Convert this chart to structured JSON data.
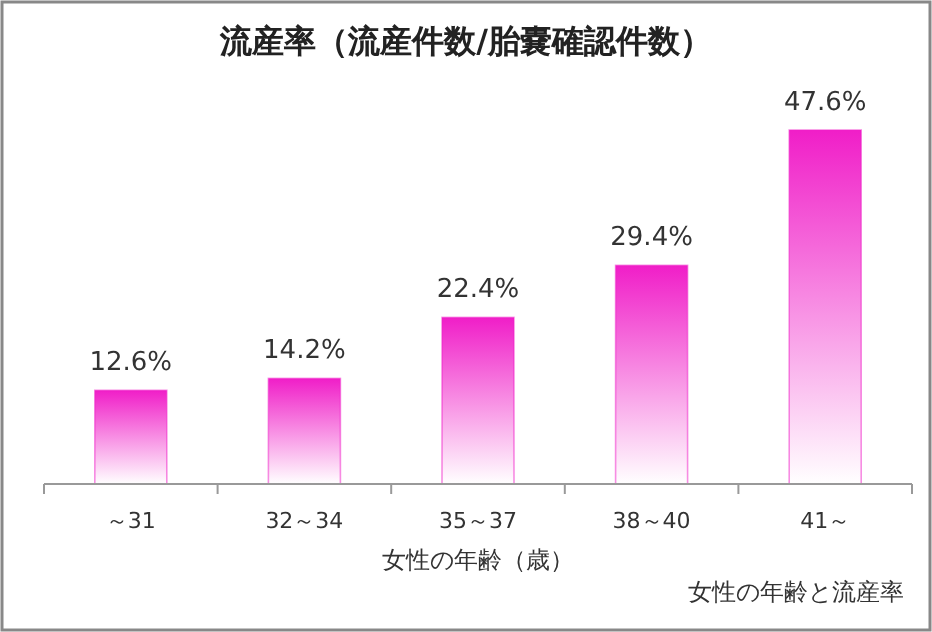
{
  "chart_data": {
    "type": "bar",
    "title": "流産率（流産件数/胎嚢確認件数）",
    "categories": [
      "～31",
      "32～34",
      "35～37",
      "38～40",
      "41～"
    ],
    "values": [
      12.6,
      14.2,
      22.4,
      29.4,
      47.6
    ],
    "value_labels": [
      "12.6%",
      "14.2%",
      "22.4%",
      "29.4%",
      "47.6%"
    ],
    "color": "#f01ec8",
    "xlabel": "女性の年齢（歳）",
    "annotations": [
      "女性の年齢と流産率"
    ]
  }
}
